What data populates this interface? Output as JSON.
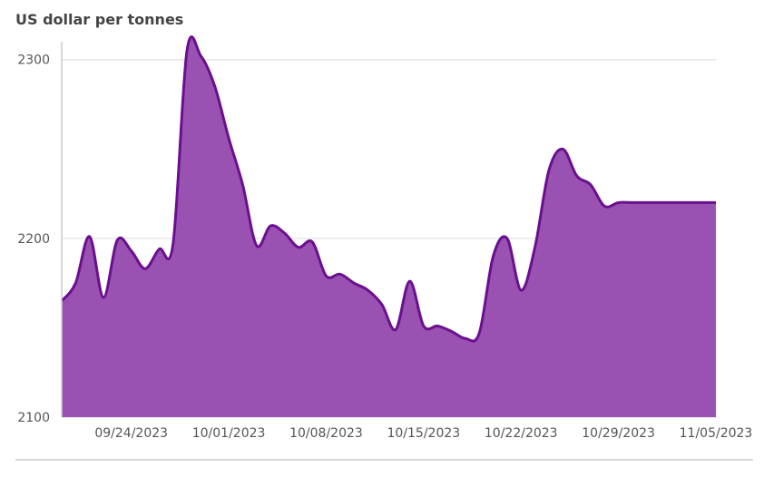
{
  "chart_data": {
    "type": "area",
    "title": "US dollar per tonnes",
    "xlabel": "",
    "ylabel": "",
    "ylim": [
      2100,
      2310
    ],
    "yticks": [
      2100,
      2200,
      2300
    ],
    "xticks": [
      "09/24/2023",
      "10/01/2023",
      "10/08/2023",
      "10/15/2023",
      "10/22/2023",
      "10/29/2023",
      "11/05/2023"
    ],
    "xrange": [
      "09/19/2023",
      "11/05/2023"
    ],
    "grid": true,
    "colors": {
      "line": "#6a0f8e",
      "fill": "#9a52b2",
      "grid": "#e6e6e6",
      "axis": "#cccccc"
    },
    "series": [
      {
        "x": [
          "09/19/2023",
          "09/20/2023",
          "09/21/2023",
          "09/22/2023",
          "09/23/2023",
          "09/24/2023",
          "09/25/2023",
          "09/26/2023",
          "09/27/2023",
          "09/28/2023",
          "09/29/2023",
          "09/30/2023",
          "10/01/2023",
          "10/02/2023",
          "10/03/2023",
          "10/04/2023",
          "10/05/2023",
          "10/06/2023",
          "10/07/2023",
          "10/08/2023",
          "10/09/2023",
          "10/10/2023",
          "10/11/2023",
          "10/12/2023",
          "10/13/2023",
          "10/14/2023",
          "10/15/2023",
          "10/16/2023",
          "10/17/2023",
          "10/18/2023",
          "10/19/2023",
          "10/20/2023",
          "10/21/2023",
          "10/22/2023",
          "10/23/2023",
          "10/24/2023",
          "10/25/2023",
          "10/26/2023",
          "10/27/2023",
          "10/28/2023",
          "10/29/2023",
          "10/30/2023",
          "10/31/2023",
          "11/01/2023",
          "11/02/2023",
          "11/03/2023",
          "11/04/2023",
          "11/05/2023"
        ],
        "values": [
          2165,
          2175,
          2201,
          2167,
          2199,
          2193,
          2183,
          2194,
          2197,
          2305,
          2302,
          2285,
          2256,
          2230,
          2196,
          2207,
          2203,
          2195,
          2198,
          2179,
          2180,
          2175,
          2171,
          2163,
          2149,
          2176,
          2151,
          2151,
          2148,
          2144,
          2147,
          2190,
          2200,
          2171,
          2195,
          2238,
          2250,
          2235,
          2230,
          2218,
          2220,
          2220,
          2220,
          2220,
          2220,
          2220,
          2220,
          2220
        ]
      }
    ]
  }
}
